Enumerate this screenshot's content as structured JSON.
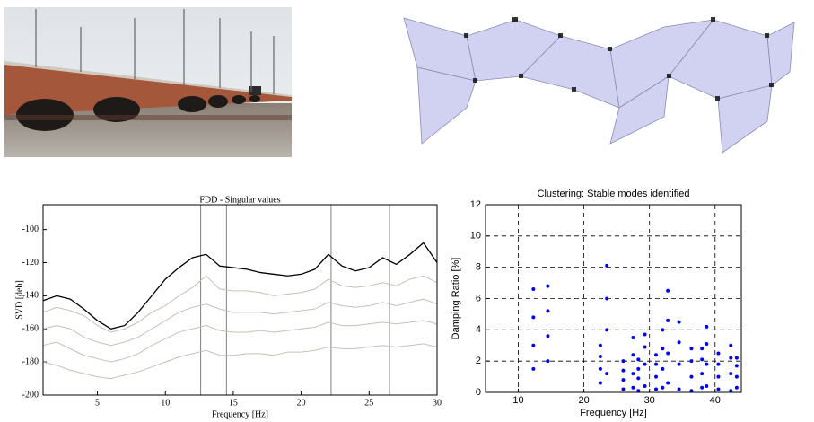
{
  "chart_data": [
    {
      "type": "line",
      "title": "FDD - Singular values",
      "xlabel": "Frequency [Hz]",
      "ylabel": "SVD [deb]",
      "x": [
        1,
        2,
        3,
        4,
        5,
        6,
        7,
        8,
        9,
        10,
        11,
        12,
        13,
        14,
        15,
        16,
        17,
        18,
        19,
        20,
        21,
        22,
        23,
        24,
        25,
        26,
        27,
        28,
        29,
        30
      ],
      "series": [
        {
          "color": "#000000",
          "values": [
            -143,
            -140,
            -142,
            -148,
            -155,
            -160,
            -158,
            -150,
            -140,
            -130,
            -123,
            -117,
            -115,
            -122,
            -123,
            -124,
            -126,
            -127,
            -128,
            -127,
            -124,
            -115,
            -122,
            -125,
            -123,
            -117,
            -121,
            -115,
            -108,
            -120
          ]
        },
        {
          "color": "#c8c0b6",
          "values": [
            -150,
            -147,
            -149,
            -152,
            -158,
            -162,
            -160,
            -156,
            -150,
            -146,
            -140,
            -135,
            -128,
            -136,
            -137,
            -137,
            -138,
            -140,
            -139,
            -138,
            -136,
            -130,
            -134,
            -135,
            -134,
            -132,
            -134,
            -130,
            -128,
            -132
          ]
        },
        {
          "color": "#c8c0b6",
          "values": [
            -160,
            -158,
            -160,
            -165,
            -168,
            -170,
            -168,
            -165,
            -160,
            -155,
            -150,
            -147,
            -145,
            -148,
            -150,
            -150,
            -150,
            -151,
            -150,
            -149,
            -148,
            -144,
            -146,
            -147,
            -146,
            -144,
            -146,
            -144,
            -142,
            -145
          ]
        },
        {
          "color": "#c8c0b6",
          "values": [
            -170,
            -168,
            -172,
            -176,
            -178,
            -180,
            -178,
            -175,
            -170,
            -166,
            -162,
            -160,
            -158,
            -161,
            -162,
            -162,
            -161,
            -162,
            -161,
            -160,
            -159,
            -156,
            -158,
            -158,
            -157,
            -156,
            -157,
            -156,
            -155,
            -157
          ]
        },
        {
          "color": "#c8c0b6",
          "values": [
            -180,
            -182,
            -185,
            -187,
            -189,
            -190,
            -188,
            -186,
            -183,
            -180,
            -177,
            -175,
            -173,
            -176,
            -176,
            -175,
            -175,
            -176,
            -174,
            -174,
            -173,
            -171,
            -172,
            -172,
            -171,
            -170,
            -171,
            -170,
            -169,
            -171
          ]
        }
      ],
      "vertical_lines": [
        12.6,
        14.5,
        22.2,
        26.5
      ],
      "vertical_line_color": "#808080",
      "xlim": [
        1,
        30
      ],
      "xticks": [
        5,
        10,
        15,
        20,
        25,
        30
      ],
      "ylim": [
        -200,
        -85
      ],
      "yticks": [
        -200,
        -180,
        -160,
        -140,
        -120,
        -100
      ],
      "grid": false
    },
    {
      "type": "scatter",
      "title": "Clustering: Stable modes identified",
      "xlabel": "Frequency [Hz]",
      "ylabel": "Damping Ratio [%]",
      "color": "#0000ff",
      "x": [
        12.3,
        12.3,
        12.3,
        12.3,
        14.5,
        14.5,
        14.5,
        14.5,
        22.5,
        22.5,
        22.5,
        22.5,
        23.5,
        23.5,
        23.5,
        23.5,
        26,
        26,
        26,
        26,
        27.5,
        27.5,
        27.5,
        27.5,
        28.3,
        28.3,
        28.3,
        28.3,
        29.3,
        29.3,
        29.3,
        29.3,
        31,
        31,
        31,
        31,
        32,
        32,
        32,
        32,
        32.8,
        32.8,
        32.8,
        32.8,
        34.5,
        34.5,
        34.5,
        34.5,
        36.4,
        36.4,
        36.4,
        36.4,
        38,
        38,
        38,
        38,
        38.7,
        38.7,
        38.7,
        38.7,
        40.5,
        40.5,
        40.5,
        40.5,
        42.4,
        42.4,
        42.4,
        42.4,
        43.3,
        43.3,
        43.3,
        43.3
      ],
      "values": [
        1.5,
        3,
        4.8,
        6.6,
        2,
        3.6,
        5.2,
        6.8,
        0.6,
        1.5,
        2.3,
        3,
        1.2,
        4,
        6,
        8.1,
        0.2,
        0.8,
        1.4,
        2,
        0.3,
        1.2,
        2.4,
        3.5,
        0.1,
        0.9,
        1.5,
        2.1,
        0.4,
        1.8,
        2.9,
        3.7,
        0.2,
        1,
        1.8,
        2.4,
        0.3,
        1.5,
        2.8,
        4,
        0.6,
        2.5,
        4.6,
        6.5,
        0.2,
        1.8,
        3.2,
        4.5,
        0.1,
        1,
        2,
        2.8,
        0.3,
        1.2,
        2.1,
        2.8,
        0.4,
        1.8,
        3.1,
        4.2,
        0.2,
        1,
        1.8,
        2.5,
        0.1,
        1.2,
        2.2,
        3,
        0.3,
        1,
        1.7,
        2.2
      ],
      "xlim": [
        5,
        44
      ],
      "xticks": [
        10,
        20,
        30,
        40
      ],
      "ylim": [
        0,
        12
      ],
      "yticks": [
        0,
        2,
        4,
        6,
        8,
        10,
        12
      ],
      "grid": true
    }
  ]
}
